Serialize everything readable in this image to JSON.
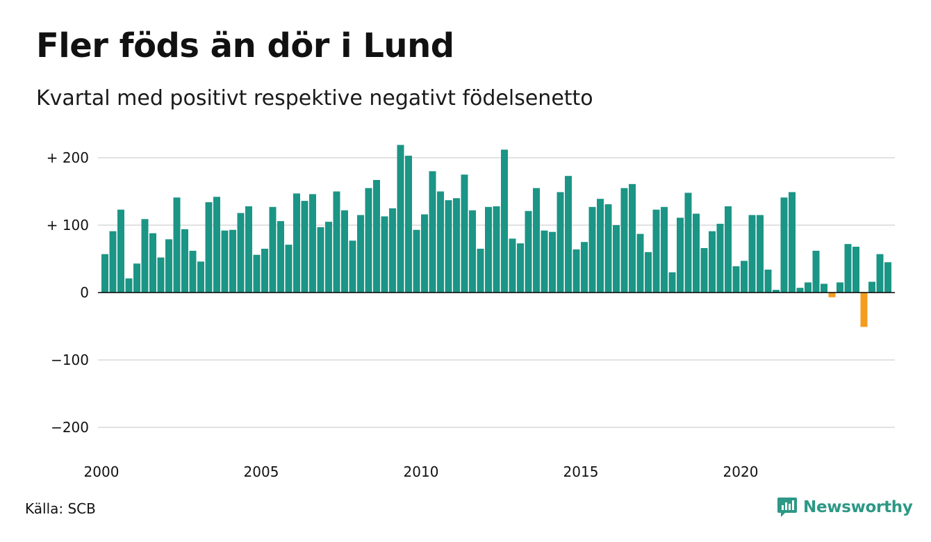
{
  "title": "Fler föds än dör i Lund",
  "subtitle": "Kvartal med positivt respektive negativt födelsenetto",
  "source": "Källa: SCB",
  "brand": "Newsworthy",
  "colors": {
    "positive": "#1b9585",
    "negative": "#f39c1f",
    "grid": "#e2e2e2",
    "axis": "#000000",
    "brand": "#2d9886"
  },
  "chart_data": {
    "type": "bar",
    "ylim": [
      -230,
      230
    ],
    "yticks": [
      {
        "value": 200,
        "label": "+ 200"
      },
      {
        "value": 100,
        "label": "+ 100"
      },
      {
        "value": 0,
        "label": "0"
      },
      {
        "value": -100,
        "label": "−100"
      },
      {
        "value": -200,
        "label": "−200"
      }
    ],
    "xticks": [
      {
        "year": 2000,
        "label": "2000"
      },
      {
        "year": 2005,
        "label": "2005"
      },
      {
        "year": 2010,
        "label": "2010"
      },
      {
        "year": 2015,
        "label": "2015"
      },
      {
        "year": 2020,
        "label": "2020"
      }
    ],
    "x_start": "2000 Q1",
    "grid": true,
    "values": [
      57,
      91,
      123,
      21,
      43,
      109,
      88,
      52,
      79,
      141,
      94,
      62,
      46,
      134,
      142,
      92,
      93,
      118,
      128,
      56,
      65,
      127,
      106,
      71,
      147,
      136,
      146,
      97,
      105,
      150,
      122,
      77,
      115,
      155,
      167,
      113,
      125,
      219,
      203,
      93,
      116,
      180,
      150,
      137,
      140,
      175,
      122,
      65,
      127,
      128,
      212,
      80,
      73,
      121,
      155,
      92,
      90,
      149,
      173,
      64,
      75,
      127,
      139,
      131,
      100,
      155,
      161,
      87,
      60,
      123,
      127,
      30,
      111,
      148,
      117,
      66,
      91,
      102,
      128,
      39,
      47,
      115,
      115,
      34,
      4,
      141,
      149,
      7,
      15,
      62,
      13,
      -7,
      15,
      72,
      68,
      -51,
      16,
      57,
      45
    ]
  }
}
